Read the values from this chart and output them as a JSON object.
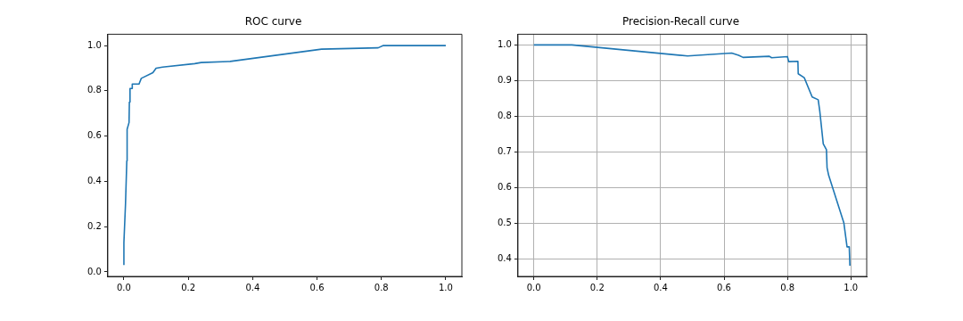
{
  "chart_data": [
    {
      "type": "line",
      "title": "ROC curve",
      "grid": false,
      "marker": "none",
      "line_style": "solid",
      "xlim": [
        -0.05,
        1.05
      ],
      "ylim": [
        -0.02,
        1.05
      ],
      "xticks": [
        {
          "value": 0,
          "label": "0.0"
        },
        {
          "value": 0.2,
          "label": "0.2"
        },
        {
          "value": 0.4,
          "label": "0.4"
        },
        {
          "value": 0.6,
          "label": "0.6"
        },
        {
          "value": 0.8,
          "label": "0.8"
        },
        {
          "value": 1,
          "label": "1.0"
        }
      ],
      "yticks": [
        {
          "value": 0,
          "label": "0.0"
        },
        {
          "value": 0.2,
          "label": "0.2"
        },
        {
          "value": 0.4,
          "label": "0.4"
        },
        {
          "value": 0.6,
          "label": "0.6"
        },
        {
          "value": 0.8,
          "label": "0.8"
        },
        {
          "value": 1,
          "label": "1.0"
        }
      ],
      "series": [
        {
          "color": "#1f77b4",
          "x": [
            0,
            0,
            0.005,
            0.009,
            0.01,
            0.016,
            0.017,
            0.019,
            0.026,
            0.026,
            0.047,
            0.054,
            0.09,
            0.1,
            0.12,
            0.22,
            0.24,
            0.33,
            0.614,
            0.79,
            0.806,
            1.0
          ],
          "values": [
            0.03,
            0.13,
            0.3,
            0.49,
            0.63,
            0.66,
            0.75,
            0.81,
            0.81,
            0.83,
            0.83,
            0.855,
            0.88,
            0.9,
            0.905,
            0.92,
            0.925,
            0.93,
            0.984,
            0.99,
            1.0,
            1.0
          ]
        }
      ]
    },
    {
      "type": "line",
      "title": "Precision-Recall curve",
      "grid": true,
      "marker": "none",
      "line_style": "solid",
      "xlim": [
        -0.05,
        1.05
      ],
      "ylim": [
        0.35,
        1.03
      ],
      "xticks": [
        {
          "value": 0,
          "label": "0.0"
        },
        {
          "value": 0.2,
          "label": "0.2"
        },
        {
          "value": 0.4,
          "label": "0.4"
        },
        {
          "value": 0.6,
          "label": "0.6"
        },
        {
          "value": 0.8,
          "label": "0.8"
        },
        {
          "value": 1,
          "label": "1.0"
        }
      ],
      "yticks": [
        {
          "value": 0.4,
          "label": "0.4"
        },
        {
          "value": 0.5,
          "label": "0.5"
        },
        {
          "value": 0.6,
          "label": "0.6"
        },
        {
          "value": 0.7,
          "label": "0.7"
        },
        {
          "value": 0.8,
          "label": "0.8"
        },
        {
          "value": 0.9,
          "label": "0.9"
        },
        {
          "value": 1,
          "label": "1.0"
        }
      ],
      "series": [
        {
          "color": "#1f77b4",
          "x": [
            0,
            0.12,
            0.485,
            0.624,
            0.646,
            0.66,
            0.743,
            0.75,
            0.8,
            0.804,
            0.833,
            0.834,
            0.853,
            0.878,
            0.897,
            0.902,
            0.913,
            0.923,
            0.925,
            0.93,
            0.978,
            0.988,
            0.995,
            0.997
          ],
          "values": [
            1.0,
            1.0,
            0.969,
            0.977,
            0.971,
            0.965,
            0.968,
            0.964,
            0.967,
            0.953,
            0.954,
            0.919,
            0.908,
            0.854,
            0.846,
            0.814,
            0.722,
            0.706,
            0.655,
            0.634,
            0.5,
            0.433,
            0.433,
            0.38
          ]
        }
      ]
    }
  ]
}
